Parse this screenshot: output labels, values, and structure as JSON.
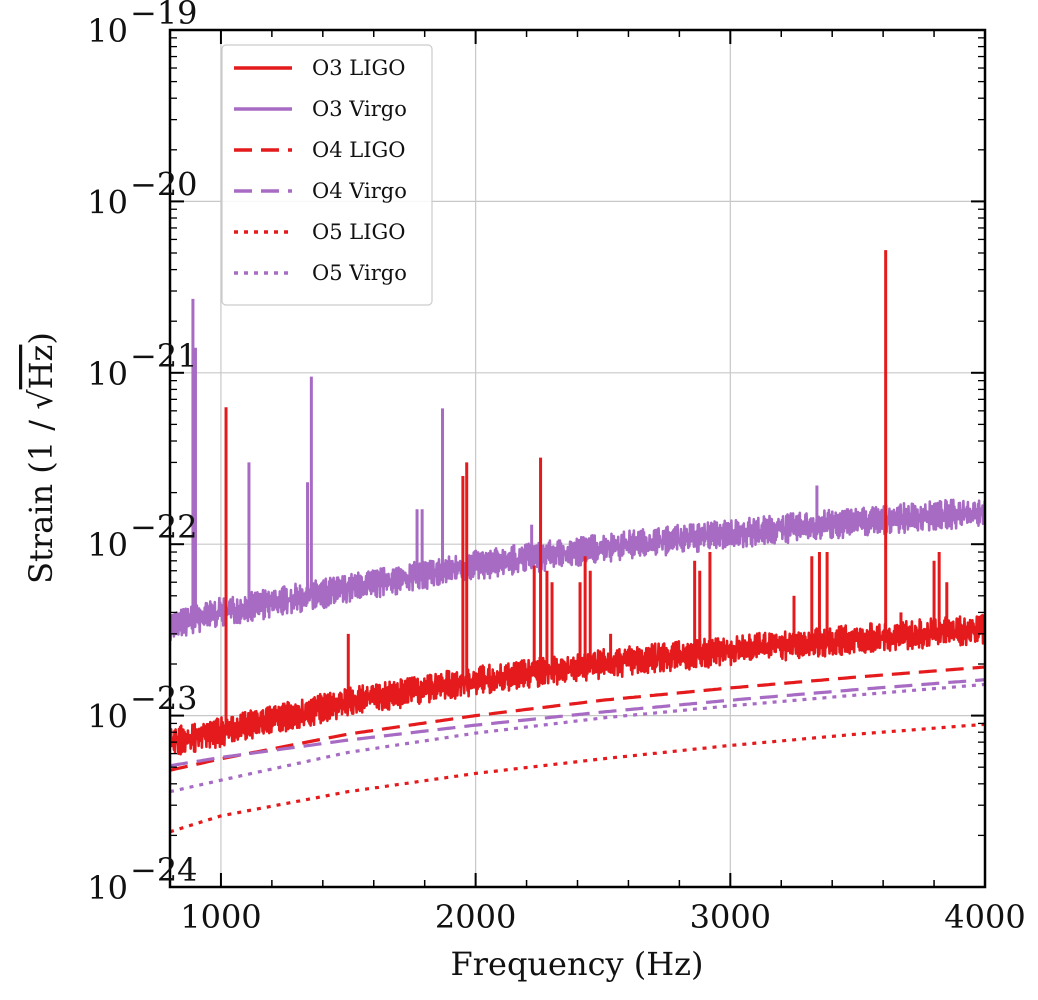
{
  "chart_data": {
    "type": "line",
    "title": "",
    "xlabel": "Frequency (Hz)",
    "ylabel": "Strain (1 / √Hz)",
    "ylabel_parts": {
      "prefix": "Strain (1 / ",
      "radicand": "Hz",
      "suffix": ")"
    },
    "xlim": [
      800,
      4000
    ],
    "ylim": [
      1e-24,
      1e-19
    ],
    "yscale": "log",
    "grid": true,
    "legend_position": "top-left",
    "colors": {
      "ligo": "#e41a1c",
      "virgo": "#a76bc4"
    },
    "x_ticks": [
      {
        "value": 1000,
        "label": "1000"
      },
      {
        "value": 2000,
        "label": "2000"
      },
      {
        "value": 3000,
        "label": "3000"
      },
      {
        "value": 4000,
        "label": "4000"
      }
    ],
    "y_ticks": [
      {
        "value": 1e-24,
        "base": "10",
        "exp": "−24"
      },
      {
        "value": 1e-23,
        "base": "10",
        "exp": "−23"
      },
      {
        "value": 1e-22,
        "base": "10",
        "exp": "−22"
      },
      {
        "value": 1e-21,
        "base": "10",
        "exp": "−21"
      },
      {
        "value": 1e-20,
        "base": "10",
        "exp": "−20"
      },
      {
        "value": 1e-19,
        "base": "10",
        "exp": "−19"
      }
    ],
    "series": [
      {
        "name": "O3 LIGO",
        "color": "#e41a1c",
        "style": "solid",
        "x": [
          800,
          1000,
          1500,
          2000,
          2500,
          3000,
          3500,
          4000
        ],
        "y": [
          7e-24,
          8e-24,
          1.2e-23,
          1.6e-23,
          2e-23,
          2.4e-23,
          2.8e-23,
          3.2e-23
        ],
        "peaks": [
          {
            "x": 1020,
            "y": 6.3e-22
          },
          {
            "x": 1500,
            "y": 3e-23
          },
          {
            "x": 1950,
            "y": 2.5e-22
          },
          {
            "x": 1965,
            "y": 3e-22
          },
          {
            "x": 2230,
            "y": 7.5e-23
          },
          {
            "x": 2255,
            "y": 3.2e-22
          },
          {
            "x": 2280,
            "y": 7e-23
          },
          {
            "x": 2300,
            "y": 6e-23
          },
          {
            "x": 2410,
            "y": 6e-23
          },
          {
            "x": 2430,
            "y": 8.5e-23
          },
          {
            "x": 2450,
            "y": 7e-23
          },
          {
            "x": 2530,
            "y": 3e-23
          },
          {
            "x": 2860,
            "y": 8e-23
          },
          {
            "x": 2880,
            "y": 7e-23
          },
          {
            "x": 2920,
            "y": 9e-23
          },
          {
            "x": 3250,
            "y": 5e-23
          },
          {
            "x": 3320,
            "y": 8.5e-23
          },
          {
            "x": 3350,
            "y": 9e-23
          },
          {
            "x": 3380,
            "y": 9e-23
          },
          {
            "x": 3610,
            "y": 5.2e-21
          },
          {
            "x": 3670,
            "y": 4e-23
          },
          {
            "x": 3800,
            "y": 8e-23
          },
          {
            "x": 3820,
            "y": 9e-23
          },
          {
            "x": 3850,
            "y": 6e-23
          }
        ]
      },
      {
        "name": "O3 Virgo",
        "color": "#a76bc4",
        "style": "solid",
        "x": [
          800,
          1000,
          1500,
          2000,
          2500,
          3000,
          3500,
          4000
        ],
        "y": [
          3.3e-23,
          4e-23,
          5.5e-23,
          7.5e-23,
          9.5e-23,
          1.15e-22,
          1.35e-22,
          1.55e-22
        ],
        "peaks": [
          {
            "x": 890,
            "y": 2.7e-21
          },
          {
            "x": 900,
            "y": 1.4e-21
          },
          {
            "x": 1110,
            "y": 3e-22
          },
          {
            "x": 1160,
            "y": 5e-23
          },
          {
            "x": 1250,
            "y": 5e-23
          },
          {
            "x": 1340,
            "y": 2.3e-22
          },
          {
            "x": 1355,
            "y": 9.5e-22
          },
          {
            "x": 1770,
            "y": 1.6e-22
          },
          {
            "x": 1790,
            "y": 1.6e-22
          },
          {
            "x": 1870,
            "y": 6.2e-22
          },
          {
            "x": 2150,
            "y": 1e-22
          },
          {
            "x": 2220,
            "y": 1.3e-22
          },
          {
            "x": 3340,
            "y": 2.2e-22
          }
        ]
      },
      {
        "name": "O4 LIGO",
        "color": "#e41a1c",
        "style": "dashed",
        "x": [
          800,
          1000,
          1500,
          2000,
          2500,
          3000,
          3500,
          4000
        ],
        "y": [
          4.8e-24,
          5.6e-24,
          7.8e-24,
          1e-23,
          1.23e-23,
          1.45e-23,
          1.68e-23,
          1.92e-23
        ]
      },
      {
        "name": "O4 Virgo",
        "color": "#a76bc4",
        "style": "dashed",
        "x": [
          800,
          1000,
          1500,
          2000,
          2500,
          3000,
          3500,
          4000
        ],
        "y": [
          5.1e-24,
          5.7e-24,
          7.2e-24,
          8.8e-24,
          1.05e-23,
          1.23e-23,
          1.42e-23,
          1.62e-23
        ]
      },
      {
        "name": "O5 LIGO",
        "color": "#e41a1c",
        "style": "dotted",
        "x": [
          800,
          1000,
          1500,
          2000,
          2500,
          3000,
          3500,
          4000
        ],
        "y": [
          2.1e-24,
          2.6e-24,
          3.6e-24,
          4.6e-24,
          5.6e-24,
          6.7e-24,
          7.8e-24,
          8.9e-24
        ]
      },
      {
        "name": "O5 Virgo",
        "color": "#a76bc4",
        "style": "dotted",
        "x": [
          800,
          1000,
          1500,
          2000,
          2500,
          3000,
          3500,
          4000
        ],
        "y": [
          3.6e-24,
          4.2e-24,
          6.1e-24,
          7.9e-24,
          9.7e-24,
          1.14e-23,
          1.32e-23,
          1.52e-23
        ]
      }
    ]
  }
}
